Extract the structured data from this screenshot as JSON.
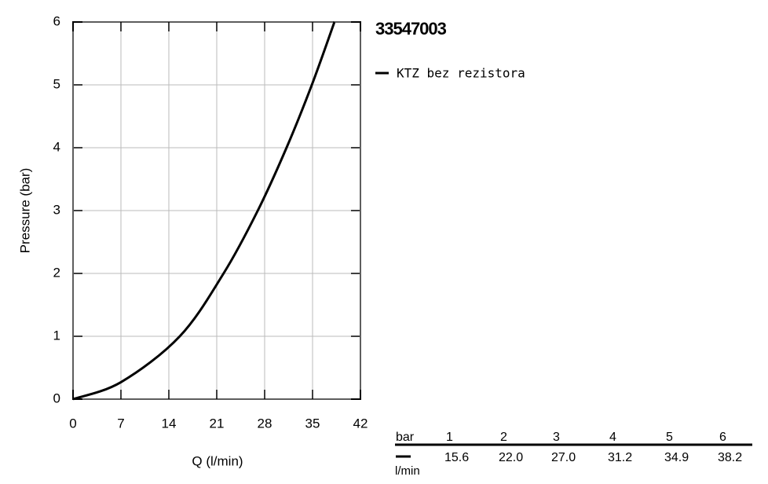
{
  "chart_data": {
    "type": "line",
    "title": "33547003",
    "x_label": "Q (l/min)",
    "y_label": "Pressure (bar)",
    "x": [
      0,
      7,
      15.6,
      22.0,
      27.0,
      31.2,
      34.9,
      38.2
    ],
    "series": [
      {
        "name": "KTZ bez rezistora",
        "color": "#000000",
        "values": [
          0,
          0.27,
          1,
          2,
          3,
          4,
          5,
          6
        ]
      }
    ],
    "xlim": [
      0,
      42
    ],
    "xticks": [
      0,
      7,
      14,
      21,
      28,
      35,
      42
    ],
    "ylim": [
      0,
      6
    ],
    "yticks": [
      0,
      1,
      2,
      3,
      4,
      5,
      6
    ],
    "grid": true
  },
  "table": {
    "columns": [
      "bar",
      "1",
      "2",
      "3",
      "4",
      "5",
      "6"
    ],
    "unit": "l/min",
    "values": [
      "15.6",
      "22.0",
      "27.0",
      "31.2",
      "34.9",
      "38.2"
    ]
  }
}
